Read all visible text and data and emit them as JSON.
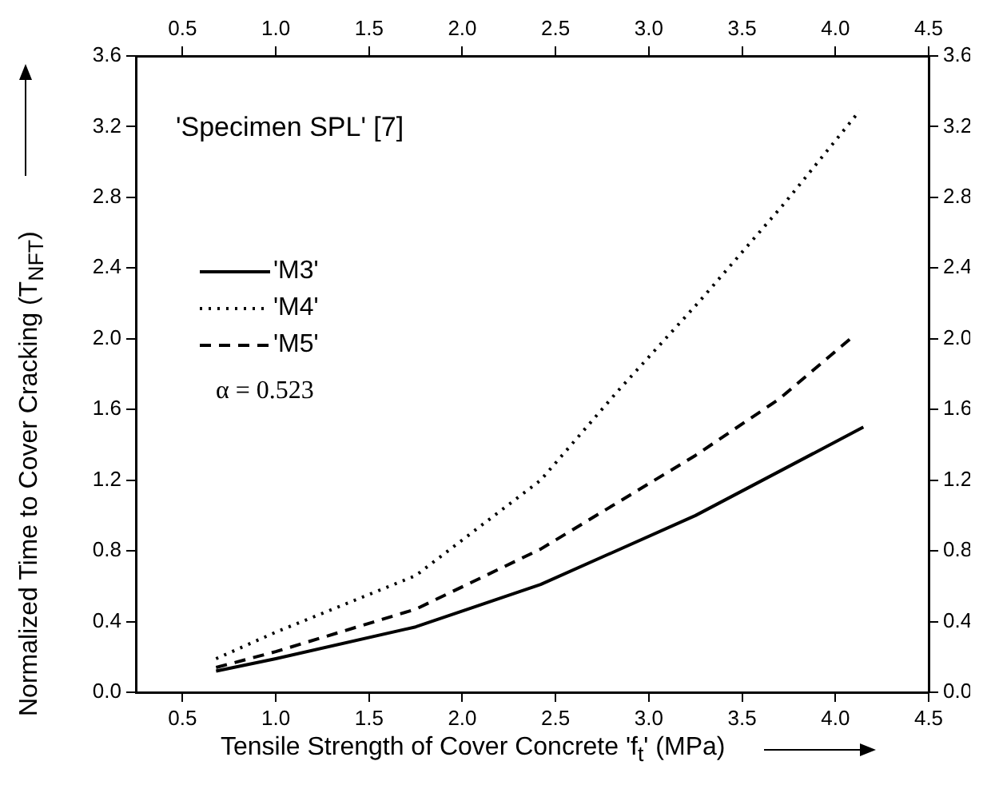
{
  "chart_data": {
    "type": "line",
    "xlabel": "Tensile Strength of Cover Concrete 'f$_{t}$' (MPa)",
    "ylabel": "Normalized Time to Cover Cracking (T$_{NFT}$)",
    "annotations": [
      "'Specimen SPL' [7]",
      "α = 0.523"
    ],
    "xlim": [
      0.25,
      4.5
    ],
    "xticks": [
      0.5,
      {
        "value": 1,
        "label": "1.0"
      },
      1.5,
      {
        "value": 2,
        "label": "2.0"
      },
      2.5,
      {
        "value": 3,
        "label": "3.0"
      },
      3.5,
      {
        "value": 4,
        "label": "4.0"
      },
      4.5
    ],
    "x2lim": [
      0.25,
      4.5
    ],
    "x2ticks": [
      0.5,
      {
        "value": 1,
        "label": "1.0"
      },
      1.5,
      {
        "value": 2,
        "label": "2.0"
      },
      2.5,
      {
        "value": 3,
        "label": "3.0"
      },
      3.5,
      {
        "value": 4,
        "label": "4.0"
      },
      4.5
    ],
    "ylim": [
      0,
      3.6
    ],
    "yticks": [
      {
        "value": 0,
        "label": "0.0"
      },
      0.4,
      0.8,
      1.2,
      1.6,
      {
        "value": 2,
        "label": "2.0"
      },
      2.4,
      2.8,
      3.2,
      3.6
    ],
    "y2lim": [
      0,
      3.6
    ],
    "y2ticks": [
      {
        "value": 0,
        "label": "0.0"
      },
      0.4,
      0.8,
      1.2,
      1.6,
      {
        "value": 2,
        "label": "2.0"
      },
      2.4,
      2.8,
      3.2,
      3.6
    ],
    "grid": false,
    "legend": "left",
    "marker": "none",
    "series": [
      {
        "name": "'M3'",
        "color": "#000000",
        "line_style": "solid",
        "x": [
          0.68,
          1.0,
          1.75,
          2.42,
          3.25,
          3.7,
          4.15
        ],
        "values": [
          0.12,
          0.19,
          0.37,
          0.61,
          1.0,
          1.25,
          1.5
        ]
      },
      {
        "name": "'M4'",
        "color": "#000000",
        "line_style": "dotted",
        "x": [
          0.68,
          1.0,
          1.75,
          2.42,
          2.83,
          3.27,
          3.73,
          4.13
        ],
        "values": [
          0.19,
          0.34,
          0.66,
          1.2,
          1.7,
          2.21,
          2.77,
          3.29
        ]
      },
      {
        "name": "'M5'",
        "color": "#000000",
        "line_style": "dashed",
        "x": [
          0.68,
          1.0,
          1.75,
          2.42,
          3.25,
          3.7,
          4.08
        ],
        "values": [
          0.14,
          0.23,
          0.47,
          0.81,
          1.34,
          1.66,
          2.0
        ]
      }
    ]
  }
}
